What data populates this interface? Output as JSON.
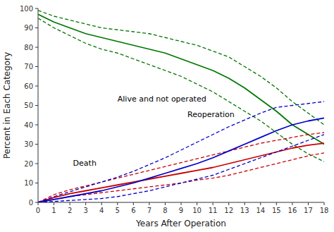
{
  "chart_data": {
    "type": "line",
    "xlabel": "Years After Operation",
    "ylabel": "Percent in Each Category",
    "x": [
      0,
      1,
      2,
      3,
      4,
      5,
      6,
      7,
      8,
      9,
      10,
      11,
      12,
      13,
      14,
      15,
      16,
      17,
      18
    ],
    "xlim": [
      0,
      18
    ],
    "ylim": [
      0,
      100
    ],
    "xticks": [
      0,
      1,
      2,
      3,
      4,
      5,
      6,
      7,
      8,
      9,
      10,
      11,
      12,
      13,
      14,
      15,
      16,
      17,
      18
    ],
    "yticks": [
      0,
      10,
      20,
      30,
      40,
      50,
      60,
      70,
      80,
      90,
      100
    ],
    "grid": false,
    "series": [
      {
        "name": "Alive and not operated",
        "color": "#007700",
        "line_style": "solid",
        "values": [
          97,
          93,
          90,
          87,
          85,
          83,
          81,
          79,
          77,
          74,
          71,
          68,
          64,
          59,
          53,
          47,
          40,
          35,
          30
        ]
      },
      {
        "color": "#007700",
        "line_style": "dashed",
        "values": [
          99,
          96,
          94,
          92,
          90,
          89,
          88,
          87,
          85,
          83,
          81,
          78,
          75,
          70,
          65,
          59,
          52,
          46,
          40
        ]
      },
      {
        "color": "#007700",
        "line_style": "dashed",
        "values": [
          95,
          90,
          86,
          82,
          79,
          77,
          74,
          71,
          68,
          65,
          61,
          57,
          52,
          47,
          42,
          36,
          30,
          25,
          21
        ]
      },
      {
        "name": "Death",
        "color": "#cc0000",
        "line_style": "solid",
        "values": [
          0,
          2.5,
          4.5,
          6.0,
          7.5,
          9.0,
          10.5,
          12.0,
          13.5,
          15.0,
          16.5,
          18.0,
          20.0,
          22.0,
          24.0,
          26.0,
          28.0,
          29.5,
          30.5
        ]
      },
      {
        "color": "#cc0000",
        "line_style": "dashed",
        "values": [
          0,
          4.0,
          6.5,
          8.5,
          10.5,
          12.5,
          14.5,
          16.5,
          18.5,
          20.5,
          22.5,
          24.5,
          26.5,
          28.5,
          30.5,
          32.0,
          33.5,
          35.0,
          36.0
        ]
      },
      {
        "color": "#cc0000",
        "line_style": "dashed",
        "values": [
          0,
          1.5,
          3.0,
          4.0,
          5.0,
          6.0,
          7.0,
          8.0,
          9.0,
          10.0,
          11.5,
          12.5,
          14.0,
          16.0,
          18.0,
          20.0,
          22.0,
          24.0,
          25.5
        ]
      },
      {
        "name": "Reoperation",
        "color": "#0000cc",
        "line_style": "solid",
        "values": [
          0,
          1.5,
          3.0,
          4.5,
          6.0,
          8.0,
          10.0,
          12.5,
          15.0,
          17.5,
          20.0,
          23.0,
          26.5,
          30.0,
          33.5,
          37.0,
          40.0,
          42.0,
          43.5
        ]
      },
      {
        "color": "#0000cc",
        "line_style": "dashed",
        "values": [
          0,
          3.0,
          5.5,
          8.0,
          10.5,
          13.0,
          16.0,
          19.5,
          23.0,
          27.0,
          31.0,
          35.0,
          39.0,
          42.5,
          46.0,
          49.0,
          50.0,
          51.0,
          52.0
        ]
      },
      {
        "color": "#0000cc",
        "line_style": "dashed",
        "values": [
          0,
          0.5,
          1.0,
          1.5,
          2.0,
          3.0,
          4.5,
          6.0,
          8.0,
          10.0,
          12.0,
          14.0,
          17.0,
          20.0,
          23.0,
          26.0,
          29.0,
          32.0,
          35.0
        ]
      }
    ]
  }
}
